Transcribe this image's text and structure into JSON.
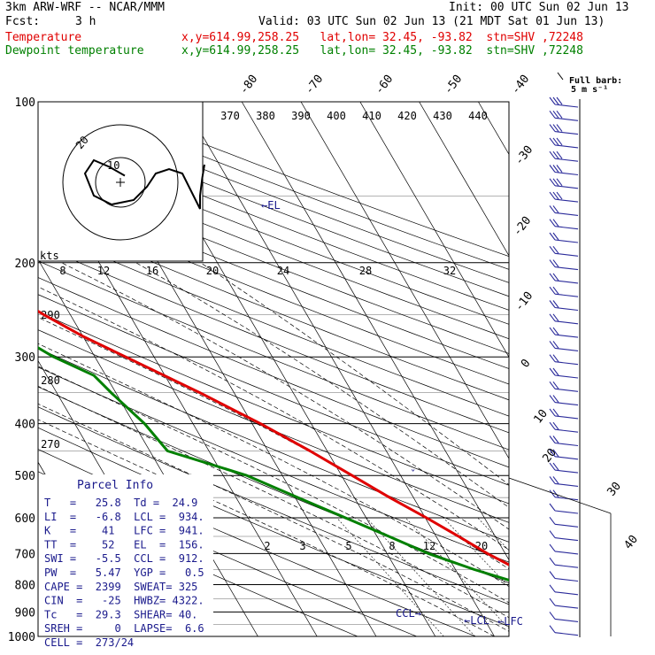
{
  "header": {
    "model": "3km ARW-WRF -- NCAR/MMM",
    "init": "Init: 00 UTC Sun 02 Jun 13",
    "fcst_label": "Fcst:",
    "fcst_value": "3 h",
    "valid": "Valid: 03 UTC Sun 02 Jun 13 (21 MDT Sat 01 Jun 13)",
    "temp_label": "Temperature",
    "dew_label": "Dewpoint temperature",
    "location": "x,y=614.99,258.25   lat,lon= 32.45, -93.82  stn=SHV ,72248"
  },
  "colors": {
    "temperature": "#e00000",
    "dewpoint": "#008000",
    "text_navy": "#1a1a8c",
    "background": "#ffffff"
  },
  "chart_data": {
    "type": "line",
    "title": "Skew-T log-P sounding",
    "y_axis": "pressure (hPa)",
    "ylim": [
      1000,
      100
    ],
    "pressure_ticks": [
      "100",
      "200",
      "300",
      "400",
      "500",
      "600",
      "700",
      "800",
      "900",
      "1000"
    ],
    "isotherm_labels": [
      "-80",
      "-70",
      "-60",
      "-50",
      "-40",
      "-30",
      "-20",
      "-10",
      "0",
      "10",
      "20",
      "30",
      "40"
    ],
    "theta_labels": [
      "370",
      "380",
      "390",
      "400",
      "410",
      "420",
      "430",
      "440"
    ],
    "mixing_ratio_labels": [
      "2",
      "3",
      "5",
      "8",
      "12",
      "20"
    ],
    "series": [
      {
        "name": "Temperature",
        "color": "#e00000",
        "points": [
          [
            1000,
            25.8
          ],
          [
            950,
            22.5
          ],
          [
            900,
            19.5
          ],
          [
            850,
            16.2
          ],
          [
            800,
            13.2
          ],
          [
            750,
            10.6
          ],
          [
            700,
            7.0
          ],
          [
            650,
            3.8
          ],
          [
            600,
            0.2
          ],
          [
            550,
            -4.0
          ],
          [
            500,
            -8.2
          ],
          [
            450,
            -12.9
          ],
          [
            400,
            -18.6
          ],
          [
            350,
            -25.8
          ],
          [
            300,
            -34.8
          ],
          [
            275,
            -39.9
          ],
          [
            250,
            -44.5
          ],
          [
            225,
            -49.0
          ],
          [
            200,
            -54.0
          ],
          [
            175,
            -58.0
          ],
          [
            150,
            -63.0
          ],
          [
            140,
            -66.0
          ],
          [
            125,
            -66.5
          ],
          [
            110,
            -67.0
          ],
          [
            100,
            -67.0
          ]
        ]
      },
      {
        "name": "Dewpoint temperature",
        "color": "#008000",
        "points": [
          [
            1000,
            24.9
          ],
          [
            950,
            20.6
          ],
          [
            900,
            18.0
          ],
          [
            850,
            14.5
          ],
          [
            800,
            10.0
          ],
          [
            750,
            3.2
          ],
          [
            700,
            -3.0
          ],
          [
            650,
            -8.0
          ],
          [
            600,
            -13.5
          ],
          [
            550,
            -19.5
          ],
          [
            500,
            -26.0
          ],
          [
            450,
            -37.0
          ],
          [
            400,
            -38.2
          ],
          [
            350,
            -40.8
          ],
          [
            325,
            -42.0
          ],
          [
            300,
            -47.0
          ],
          [
            250,
            -55.0
          ],
          [
            200,
            -65.5
          ],
          [
            175,
            -71.0
          ],
          [
            150,
            -78.5
          ],
          [
            125,
            -83.0
          ],
          [
            100,
            -86.0
          ]
        ]
      }
    ],
    "levels": {
      "EL": 156,
      "LCL": 934,
      "LFC": 941,
      "CCL": 912
    },
    "hodograph": {
      "rings_label": "kts",
      "ring_labels": [
        "10",
        "20"
      ],
      "speed_ticks": [
        "8",
        "12",
        "16",
        "20",
        "24",
        "28",
        "32"
      ],
      "theta_e_labels": [
        "290",
        "280",
        "270"
      ],
      "trace": [
        [
          2,
          3
        ],
        [
          -5,
          7
        ],
        [
          -12,
          10
        ],
        [
          -16,
          4
        ],
        [
          -12,
          -6
        ],
        [
          -4,
          -10
        ],
        [
          6,
          -8
        ],
        [
          12,
          -2
        ],
        [
          16,
          4
        ],
        [
          22,
          6
        ],
        [
          28,
          4
        ],
        [
          31,
          -2
        ],
        [
          34,
          -8
        ],
        [
          36,
          -12
        ],
        [
          36,
          -6
        ],
        [
          37,
          2
        ],
        [
          38,
          8
        ]
      ]
    },
    "barb_legend": {
      "line1": "Full barb:",
      "line2": "5 m s⁻¹"
    },
    "level_annotations": {
      "el": "←EL",
      "lcl": "←LCL",
      "lfc": "←LFC",
      "ccl": "CCL→"
    }
  },
  "parcel_info": {
    "title": "Parcel Info",
    "rows": [
      "T   =   25.8  Td =  24.9",
      "LI  =   -6.8  LCL =  934.",
      "K   =    41   LFC =  941.",
      "TT  =    52   EL  =  156.",
      "SWI =   -5.5  CCL =  912.",
      "PW  =   5.47  YGP =   0.5",
      "CAPE =  2399  SWEAT= 325",
      "CIN  =   -25  HWBZ= 4322.",
      "Tc   =  29.3  SHEAR= 40.",
      "SREH =     0  LAPSE=  6.6",
      "CELL =  273/24"
    ]
  }
}
